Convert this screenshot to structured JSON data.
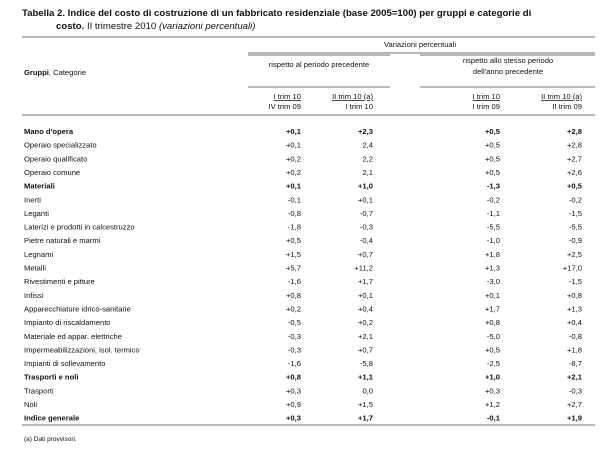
{
  "title": {
    "bold": "Tabella 2. Indice del costo di costruzione di un fabbricato residenziale (base 2005=100) per gruppi e categorie di",
    "bold2": "costo.",
    "normal": "II trimestre 2010",
    "italic": "(variazioni percentuali)"
  },
  "header": {
    "stub": "Gruppi",
    "stub_rest": ", Categorie",
    "group": "Variazioni percentuali",
    "sub": [
      "rispetto al periodo precedente",
      "rispetto allo stesso periodo",
      "dell'anno precedente"
    ],
    "columns": [
      [
        "I trim 10",
        "IV trim 09"
      ],
      [
        "II trim 10 (a)",
        "I trim 10"
      ],
      [
        "I trim 10",
        "I trim 09"
      ],
      [
        "II trim 10 (a)",
        "II trim 09"
      ]
    ]
  },
  "table": {
    "rows": [
      {
        "label": "Mano d'opera",
        "bold": true,
        "values": [
          "+0,1",
          "+2,3",
          "+0,5",
          "+2,8"
        ]
      },
      {
        "label": "Operaio specializzato",
        "values": [
          "+0,1",
          "2,4",
          "+0,5",
          "+2,8"
        ]
      },
      {
        "label": "Operaio qualificato",
        "values": [
          "+0,2",
          "2,2",
          "+0,5",
          "+2,7"
        ]
      },
      {
        "label": "Operaio comune",
        "values": [
          "+0,2",
          "2,1",
          "+0,5",
          "+2,6"
        ]
      },
      {
        "label": "Materiali",
        "bold": true,
        "values": [
          "+0,1",
          "+1,0",
          "-1,3",
          "+0,5"
        ]
      },
      {
        "label": "Inerti",
        "values": [
          "-0,1",
          "+0,1",
          "-0,2",
          "-0,2"
        ]
      },
      {
        "label": "Leganti",
        "values": [
          "-0,8",
          "-0,7",
          "-1,1",
          "-1,5"
        ]
      },
      {
        "label": "Laterizi e prodotti in calcestruzzo",
        "values": [
          "-1,8",
          "-0,3",
          "-5,5",
          "-5,5"
        ]
      },
      {
        "label": "Pietre naturali e marmi",
        "values": [
          "+0,5",
          "-0,4",
          "-1,0",
          "-0,9"
        ]
      },
      {
        "label": "Legnami",
        "values": [
          "+1,5",
          "+0,7",
          "+1,8",
          "+2,5"
        ]
      },
      {
        "label": "Metalli",
        "values": [
          "+5,7",
          "+11,2",
          "+1,3",
          "+17,0"
        ]
      },
      {
        "label": "Rivestimenti e pitture",
        "values": [
          "-1,6",
          "+1,7",
          "-3,0",
          "-1,5"
        ]
      },
      {
        "label": "Infissi",
        "values": [
          "+0,8",
          "+0,1",
          "+0,1",
          "+0,8"
        ]
      },
      {
        "label": "Apparecchiature idrico-sanitarie",
        "values": [
          "+0,2",
          "+0,4",
          "+1,7",
          "+1,3"
        ]
      },
      {
        "label": "Impianto di riscaldamento",
        "values": [
          "-0,5",
          "+0,2",
          "+0,8",
          "+0,4"
        ]
      },
      {
        "label": "Materiale ed appar. elettriche",
        "values": [
          "-0,3",
          "+2,1",
          "-5,0",
          "-0,8"
        ]
      },
      {
        "label": "Impermeabilizzazioni, isol. termico",
        "values": [
          "-0,3",
          "+0,7",
          "+0,5",
          "+1,8"
        ]
      },
      {
        "label": "Impianti di sollevamento",
        "values": [
          "-1,6",
          "-5,8",
          "-2,5",
          "-8,7"
        ]
      },
      {
        "label": "Trasporti e noli",
        "bold": true,
        "values": [
          "+0,8",
          "+1,1",
          "+1,0",
          "+2,1"
        ]
      },
      {
        "label": "Trasporti",
        "values": [
          "+0,3",
          "0,0",
          "+0,3",
          "-0,3"
        ]
      },
      {
        "label": "Noli",
        "values": [
          "+0,9",
          "+1,5",
          "+1,2",
          "+2,7"
        ]
      },
      {
        "label": "Indice generale",
        "bold": true,
        "values": [
          "+0,3",
          "+1,7",
          "-0,1",
          "+1,9"
        ]
      }
    ]
  },
  "footnote": "(a) Dati provvisori."
}
